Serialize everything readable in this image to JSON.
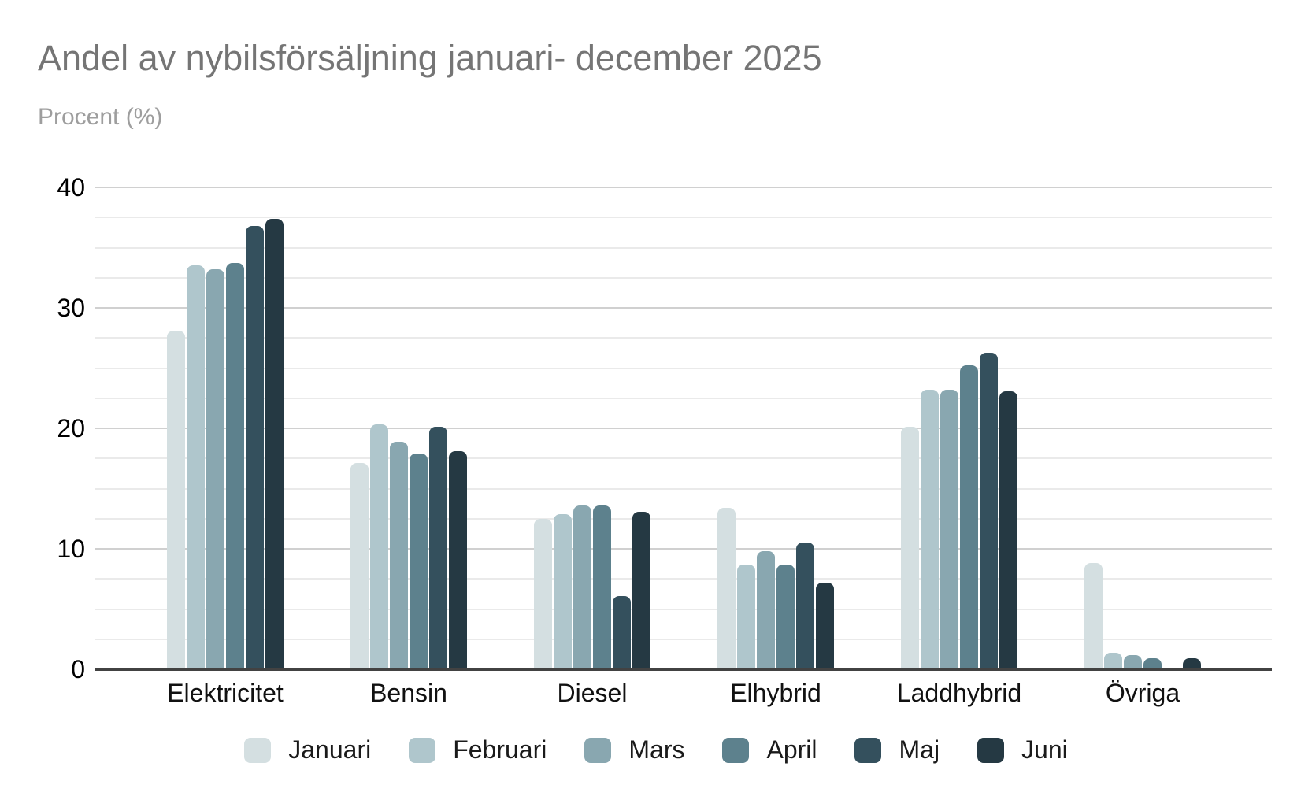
{
  "title": "Andel av nybilsförsäljning januari- december 2025",
  "subtitle": "Procent (%)",
  "chart_data": {
    "type": "bar",
    "title": "Andel av nybilsförsäljning januari- december 2025",
    "ylabel": "Procent (%)",
    "xlabel": "",
    "categories": [
      "Elektricitet",
      "Bensin",
      "Diesel",
      "Elhybrid",
      "Laddhybrid",
      "Övriga"
    ],
    "series": [
      {
        "name": "Januari",
        "color": "#d4dfe1",
        "values": [
          28.1,
          17.1,
          12.5,
          13.4,
          20.1,
          8.8
        ]
      },
      {
        "name": "Februari",
        "color": "#afc6cc",
        "values": [
          33.5,
          20.3,
          12.9,
          8.7,
          23.2,
          1.4
        ]
      },
      {
        "name": "Mars",
        "color": "#89a7b0",
        "values": [
          33.2,
          18.9,
          13.6,
          9.8,
          23.2,
          1.2
        ]
      },
      {
        "name": "April",
        "color": "#5d818d",
        "values": [
          33.7,
          17.9,
          13.6,
          8.7,
          25.2,
          0.9
        ]
      },
      {
        "name": "Maj",
        "color": "#34505d",
        "values": [
          36.8,
          20.1,
          6.1,
          10.5,
          26.3,
          0
        ]
      },
      {
        "name": "Juni",
        "color": "#253943",
        "values": [
          37.4,
          18.1,
          13.1,
          7.2,
          23.1,
          0.9
        ]
      }
    ],
    "ylim": [
      0,
      40
    ],
    "y_major_ticks": [
      0,
      10,
      20,
      30,
      40
    ],
    "y_minor_step": 2.5,
    "grid": true,
    "legend_position": "bottom",
    "axis_color": "#424242",
    "gridline_major_color": "#d0d0d0",
    "gridline_minor_color": "#eaeaea"
  }
}
